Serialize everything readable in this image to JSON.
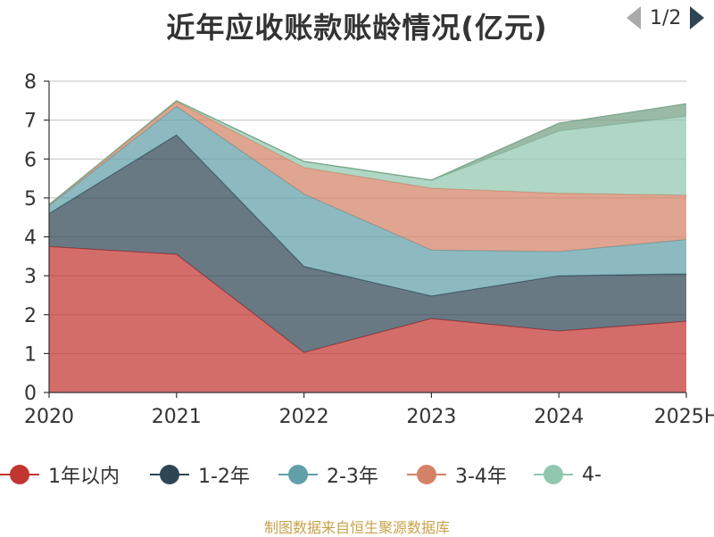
{
  "chart_data": {
    "type": "area",
    "stacked": true,
    "title": "近年应收账款账龄情况(亿元)",
    "xlabel": "",
    "ylabel": "",
    "categories": [
      "2020",
      "2021",
      "2022",
      "2023",
      "2024",
      "2025H"
    ],
    "ylim": [
      0,
      8
    ],
    "yticks": [
      0,
      1,
      2,
      3,
      4,
      5,
      6,
      7,
      8
    ],
    "grid": true,
    "legend_position": "bottom",
    "series": [
      {
        "name": "1年以内",
        "color": "#c23531",
        "values": [
          3.75,
          3.55,
          1.03,
          1.9,
          1.58,
          1.83
        ]
      },
      {
        "name": "1-2年",
        "color": "#2f4554",
        "values": [
          0.85,
          3.07,
          2.21,
          0.58,
          1.42,
          1.22
        ]
      },
      {
        "name": "2-3年",
        "color": "#61a0a8",
        "values": [
          0.2,
          0.73,
          1.86,
          1.18,
          0.62,
          0.88
        ]
      },
      {
        "name": "3-4年",
        "color": "#d48265",
        "values": [
          0.02,
          0.12,
          0.68,
          1.59,
          1.5,
          1.14
        ]
      },
      {
        "name": "4-",
        "color": "#91c7ae",
        "values": [
          0.01,
          0.02,
          0.15,
          0.2,
          1.6,
          2.03
        ]
      },
      {
        "values": [
          0.0,
          0.01,
          0.01,
          0.01,
          0.2,
          0.32
        ]
      }
    ]
  },
  "legend": {
    "page_indicator": "1/2"
  },
  "footer": {
    "source": "制图数据来自恒生聚源数据库"
  },
  "colors": {
    "axis": "#333333",
    "grid": "#cccccc",
    "extra_series": "#749f83",
    "source_text": "#c8a24a"
  }
}
